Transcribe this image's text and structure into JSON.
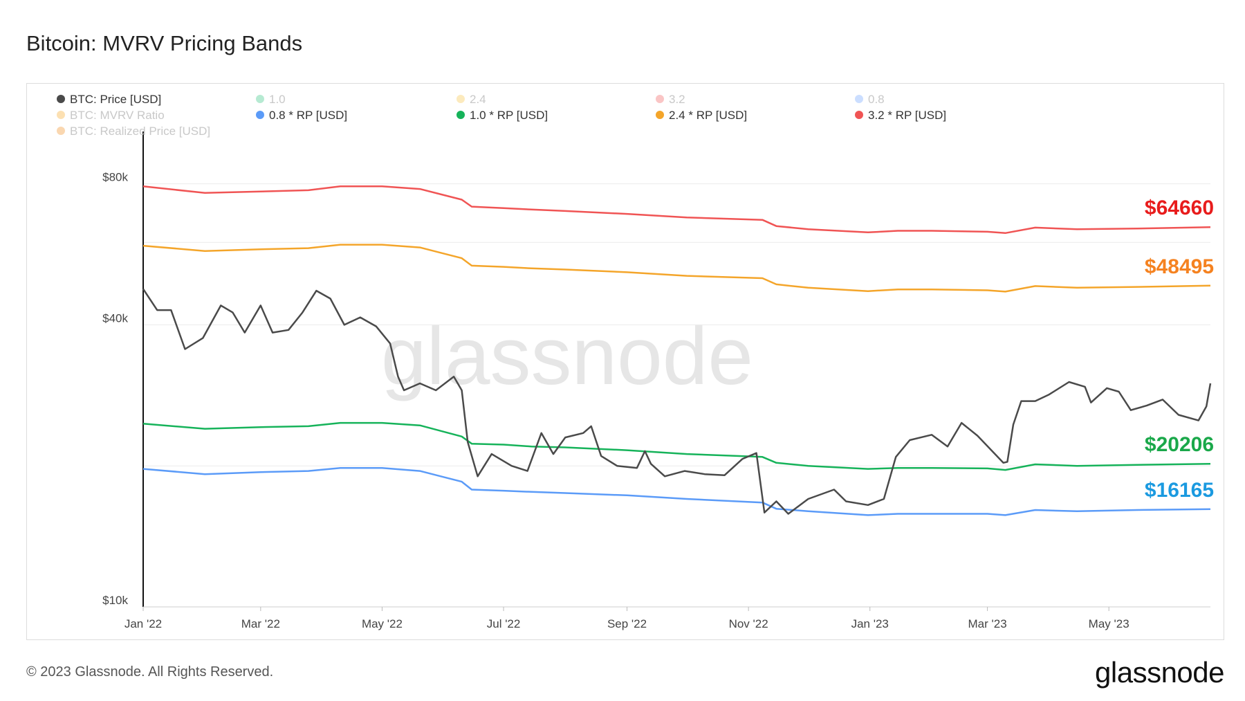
{
  "title": "Bitcoin: MVRV Pricing Bands",
  "watermark": "glassnode",
  "footer": {
    "copyright": "© 2023 Glassnode. All Rights Reserved.",
    "logo": "glassnode"
  },
  "legend": [
    {
      "label": "BTC: Price [USD]",
      "color": "#4a4a4a",
      "faded": false
    },
    {
      "label": "1.0",
      "color": "#2ec27e",
      "faded": true
    },
    {
      "label": "2.4",
      "color": "#f6c343",
      "faded": true
    },
    {
      "label": "3.2",
      "color": "#f05a5a",
      "faded": true
    },
    {
      "label": "0.8",
      "color": "#6aa0ff",
      "faded": true
    },
    {
      "label": "BTC: MVRV Ratio",
      "color": "#f5a623",
      "faded": true
    },
    {
      "label": "0.8 * RP [USD]",
      "color": "#5b9bf8",
      "faded": false
    },
    {
      "label": "1.0 * RP [USD]",
      "color": "#16b35a",
      "faded": false
    },
    {
      "label": "2.4 * RP [USD]",
      "color": "#f4a52a",
      "faded": false
    },
    {
      "label": "3.2 * RP [USD]",
      "color": "#f05454",
      "faded": false
    },
    {
      "label": "BTC: Realized Price [USD]",
      "color": "#f28b1c",
      "faded": true
    }
  ],
  "callouts": [
    {
      "text": "$64660",
      "color": "#e81c1c",
      "value": 64660
    },
    {
      "text": "$48495",
      "color": "#f58220",
      "value": 48495
    },
    {
      "text": "$20206",
      "color": "#1aa84a",
      "value": 20206
    },
    {
      "text": "$16165",
      "color": "#1b9ae0",
      "value": 16165
    }
  ],
  "chart_data": {
    "type": "line",
    "y_scale": "log",
    "ylim": [
      10000,
      100000
    ],
    "y_ticks": [
      {
        "value": 80000,
        "label": "$80k"
      },
      {
        "value": 40000,
        "label": "$40k"
      },
      {
        "value": 10000,
        "label": "$10k"
      }
    ],
    "xlim": [
      "2022-01-01",
      "2023-06-21"
    ],
    "x_ticks": [
      {
        "date": "2022-01-01",
        "label": "Jan '22"
      },
      {
        "date": "2022-03-01",
        "label": "Mar '22"
      },
      {
        "date": "2022-05-01",
        "label": "May '22"
      },
      {
        "date": "2022-07-01",
        "label": "Jul '22"
      },
      {
        "date": "2022-09-01",
        "label": "Sep '22"
      },
      {
        "date": "2022-11-01",
        "label": "Nov '22"
      },
      {
        "date": "2023-01-01",
        "label": "Jan '23"
      },
      {
        "date": "2023-03-01",
        "label": "Mar '23"
      },
      {
        "date": "2023-05-01",
        "label": "May '23"
      }
    ],
    "grid": true,
    "legend_position": "top-left",
    "series": [
      {
        "name": "3.2 * RP [USD]",
        "color": "#f05454",
        "points": [
          [
            "2022-01-01",
            79000
          ],
          [
            "2022-02-01",
            76500
          ],
          [
            "2022-03-01",
            77000
          ],
          [
            "2022-03-25",
            77500
          ],
          [
            "2022-04-10",
            79000
          ],
          [
            "2022-05-01",
            79000
          ],
          [
            "2022-05-20",
            78000
          ],
          [
            "2022-06-10",
            74000
          ],
          [
            "2022-06-15",
            71500
          ],
          [
            "2022-07-01",
            71000
          ],
          [
            "2022-07-15",
            70500
          ],
          [
            "2022-08-01",
            70000
          ],
          [
            "2022-09-01",
            69000
          ],
          [
            "2022-10-01",
            67800
          ],
          [
            "2022-11-08",
            67000
          ],
          [
            "2022-11-15",
            65000
          ],
          [
            "2022-12-01",
            64000
          ],
          [
            "2022-12-31",
            63000
          ],
          [
            "2023-01-15",
            63500
          ],
          [
            "2023-02-01",
            63500
          ],
          [
            "2023-03-01",
            63200
          ],
          [
            "2023-03-10",
            62800
          ],
          [
            "2023-03-25",
            64500
          ],
          [
            "2023-04-15",
            64000
          ],
          [
            "2023-05-15",
            64200
          ],
          [
            "2023-06-21",
            64660
          ]
        ]
      },
      {
        "name": "2.4 * RP [USD]",
        "color": "#f4a52a",
        "points": [
          [
            "2022-01-01",
            59000
          ],
          [
            "2022-02-01",
            57500
          ],
          [
            "2022-03-01",
            58000
          ],
          [
            "2022-03-25",
            58300
          ],
          [
            "2022-04-10",
            59300
          ],
          [
            "2022-05-01",
            59300
          ],
          [
            "2022-05-20",
            58500
          ],
          [
            "2022-06-10",
            55500
          ],
          [
            "2022-06-15",
            53500
          ],
          [
            "2022-07-01",
            53200
          ],
          [
            "2022-07-15",
            52800
          ],
          [
            "2022-08-01",
            52500
          ],
          [
            "2022-09-01",
            51800
          ],
          [
            "2022-10-01",
            50900
          ],
          [
            "2022-11-08",
            50300
          ],
          [
            "2022-11-15",
            48800
          ],
          [
            "2022-12-01",
            48000
          ],
          [
            "2022-12-31",
            47200
          ],
          [
            "2023-01-15",
            47600
          ],
          [
            "2023-02-01",
            47600
          ],
          [
            "2023-03-01",
            47400
          ],
          [
            "2023-03-10",
            47100
          ],
          [
            "2023-03-25",
            48400
          ],
          [
            "2023-04-15",
            48000
          ],
          [
            "2023-05-15",
            48200
          ],
          [
            "2023-06-21",
            48495
          ]
        ]
      },
      {
        "name": "1.0 * RP [USD]",
        "color": "#16b35a",
        "points": [
          [
            "2022-01-01",
            24600
          ],
          [
            "2022-02-01",
            24000
          ],
          [
            "2022-03-01",
            24200
          ],
          [
            "2022-03-25",
            24300
          ],
          [
            "2022-04-10",
            24700
          ],
          [
            "2022-05-01",
            24700
          ],
          [
            "2022-05-20",
            24400
          ],
          [
            "2022-06-10",
            23100
          ],
          [
            "2022-06-15",
            22300
          ],
          [
            "2022-07-01",
            22200
          ],
          [
            "2022-07-15",
            22000
          ],
          [
            "2022-08-01",
            21900
          ],
          [
            "2022-09-01",
            21600
          ],
          [
            "2022-10-01",
            21200
          ],
          [
            "2022-11-08",
            20900
          ],
          [
            "2022-11-15",
            20300
          ],
          [
            "2022-12-01",
            20000
          ],
          [
            "2022-12-31",
            19700
          ],
          [
            "2023-01-15",
            19800
          ],
          [
            "2023-02-01",
            19800
          ],
          [
            "2023-03-01",
            19750
          ],
          [
            "2023-03-10",
            19600
          ],
          [
            "2023-03-25",
            20150
          ],
          [
            "2023-04-15",
            20000
          ],
          [
            "2023-05-15",
            20100
          ],
          [
            "2023-06-21",
            20206
          ]
        ]
      },
      {
        "name": "0.8 * RP [USD]",
        "color": "#5b9bf8",
        "points": [
          [
            "2022-01-01",
            19700
          ],
          [
            "2022-02-01",
            19200
          ],
          [
            "2022-03-01",
            19400
          ],
          [
            "2022-03-25",
            19500
          ],
          [
            "2022-04-10",
            19800
          ],
          [
            "2022-05-01",
            19800
          ],
          [
            "2022-05-20",
            19500
          ],
          [
            "2022-06-10",
            18500
          ],
          [
            "2022-06-15",
            17800
          ],
          [
            "2022-07-01",
            17700
          ],
          [
            "2022-07-15",
            17600
          ],
          [
            "2022-08-01",
            17500
          ],
          [
            "2022-09-01",
            17300
          ],
          [
            "2022-10-01",
            17000
          ],
          [
            "2022-11-08",
            16700
          ],
          [
            "2022-11-15",
            16200
          ],
          [
            "2022-12-01",
            16000
          ],
          [
            "2022-12-31",
            15700
          ],
          [
            "2023-01-15",
            15800
          ],
          [
            "2023-02-01",
            15800
          ],
          [
            "2023-03-01",
            15800
          ],
          [
            "2023-03-10",
            15700
          ],
          [
            "2023-03-25",
            16100
          ],
          [
            "2023-04-15",
            16000
          ],
          [
            "2023-05-15",
            16100
          ],
          [
            "2023-06-21",
            16165
          ]
        ]
      },
      {
        "name": "BTC: Price [USD]",
        "color": "#4a4a4a",
        "points": [
          [
            "2022-01-01",
            47700
          ],
          [
            "2022-01-08",
            43000
          ],
          [
            "2022-01-15",
            43000
          ],
          [
            "2022-01-22",
            35500
          ],
          [
            "2022-01-31",
            37500
          ],
          [
            "2022-02-09",
            44000
          ],
          [
            "2022-02-15",
            42500
          ],
          [
            "2022-02-21",
            38500
          ],
          [
            "2022-03-01",
            44000
          ],
          [
            "2022-03-07",
            38500
          ],
          [
            "2022-03-15",
            39000
          ],
          [
            "2022-03-22",
            42500
          ],
          [
            "2022-03-29",
            47300
          ],
          [
            "2022-04-05",
            45500
          ],
          [
            "2022-04-12",
            40000
          ],
          [
            "2022-04-20",
            41500
          ],
          [
            "2022-04-28",
            39700
          ],
          [
            "2022-05-05",
            36500
          ],
          [
            "2022-05-09",
            31000
          ],
          [
            "2022-05-12",
            29000
          ],
          [
            "2022-05-20",
            30000
          ],
          [
            "2022-05-28",
            29000
          ],
          [
            "2022-06-06",
            31000
          ],
          [
            "2022-06-10",
            29000
          ],
          [
            "2022-06-13",
            22500
          ],
          [
            "2022-06-18",
            19000
          ],
          [
            "2022-06-25",
            21200
          ],
          [
            "2022-07-05",
            20000
          ],
          [
            "2022-07-13",
            19500
          ],
          [
            "2022-07-20",
            23500
          ],
          [
            "2022-07-26",
            21200
          ],
          [
            "2022-08-01",
            23000
          ],
          [
            "2022-08-10",
            23500
          ],
          [
            "2022-08-14",
            24300
          ],
          [
            "2022-08-19",
            21000
          ],
          [
            "2022-08-27",
            20000
          ],
          [
            "2022-09-06",
            19800
          ],
          [
            "2022-09-10",
            21500
          ],
          [
            "2022-09-13",
            20200
          ],
          [
            "2022-09-20",
            19000
          ],
          [
            "2022-09-30",
            19500
          ],
          [
            "2022-10-10",
            19200
          ],
          [
            "2022-10-20",
            19100
          ],
          [
            "2022-10-29",
            20700
          ],
          [
            "2022-11-05",
            21300
          ],
          [
            "2022-11-09",
            15900
          ],
          [
            "2022-11-15",
            16800
          ],
          [
            "2022-11-21",
            15800
          ],
          [
            "2022-12-01",
            17000
          ],
          [
            "2022-12-14",
            17800
          ],
          [
            "2022-12-20",
            16800
          ],
          [
            "2022-12-31",
            16500
          ],
          [
            "2023-01-08",
            17000
          ],
          [
            "2023-01-14",
            20900
          ],
          [
            "2023-01-21",
            22700
          ],
          [
            "2023-02-01",
            23300
          ],
          [
            "2023-02-09",
            22000
          ],
          [
            "2023-02-16",
            24700
          ],
          [
            "2023-02-24",
            23200
          ],
          [
            "2023-03-09",
            20300
          ],
          [
            "2023-03-11",
            20400
          ],
          [
            "2023-03-14",
            24500
          ],
          [
            "2023-03-18",
            27500
          ],
          [
            "2023-03-25",
            27500
          ],
          [
            "2023-04-01",
            28400
          ],
          [
            "2023-04-11",
            30200
          ],
          [
            "2023-04-19",
            29500
          ],
          [
            "2023-04-22",
            27300
          ],
          [
            "2023-04-30",
            29300
          ],
          [
            "2023-05-06",
            28800
          ],
          [
            "2023-05-12",
            26300
          ],
          [
            "2023-05-20",
            26900
          ],
          [
            "2023-05-28",
            27700
          ],
          [
            "2023-06-05",
            25700
          ],
          [
            "2023-06-15",
            25000
          ],
          [
            "2023-06-19",
            26800
          ],
          [
            "2023-06-21",
            30000
          ]
        ]
      }
    ]
  }
}
